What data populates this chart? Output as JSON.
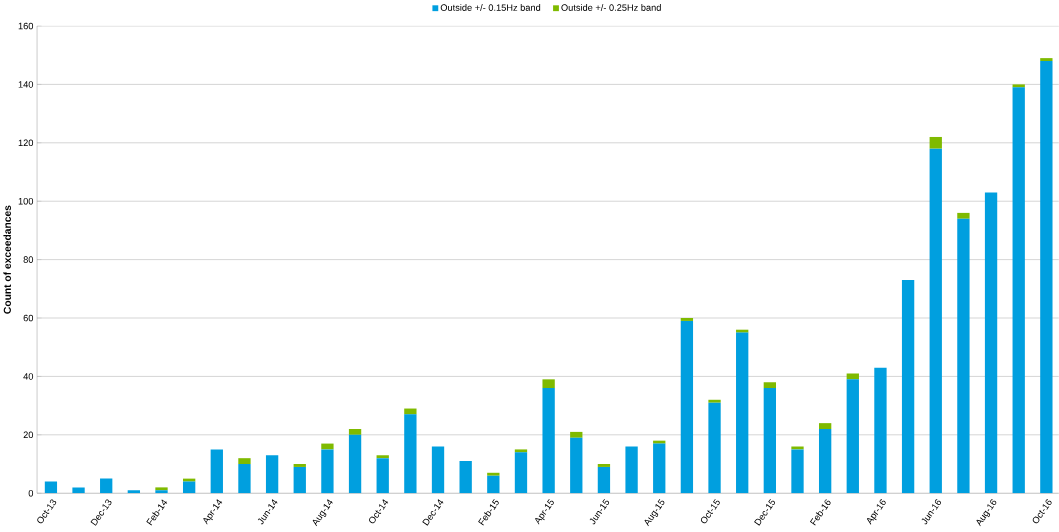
{
  "chart_data": {
    "type": "bar",
    "stacked": true,
    "ylabel": "Count of exceedances",
    "categories": [
      "Oct-13",
      null,
      "Dec-13",
      null,
      "Feb-14",
      null,
      "Apr-14",
      null,
      "Jun-14",
      null,
      "Aug-14",
      null,
      "Oct-14",
      null,
      "Dec-14",
      null,
      "Feb-15",
      null,
      "Apr-15",
      null,
      "Jun-15",
      null,
      "Aug-15",
      null,
      "Oct-15",
      null,
      "Dec-15",
      null,
      "Feb-16",
      null,
      "Apr-16",
      null,
      "Jun-16",
      null,
      "Aug-16",
      null,
      "Oct-16"
    ],
    "series": [
      {
        "name": "Outside +/- 0.15Hz band",
        "color": "#009fdf",
        "values": [
          4,
          2,
          5,
          1,
          1,
          4,
          15,
          10,
          13,
          9,
          15,
          20,
          12,
          27,
          16,
          11,
          6,
          14,
          36,
          19,
          9,
          16,
          17,
          59,
          31,
          55,
          36,
          15,
          22,
          39,
          43,
          73,
          118,
          94,
          103,
          139,
          148
        ]
      },
      {
        "name": "Outside +/- 0.25Hz band",
        "color": "#7fba00",
        "values": [
          0,
          0,
          0,
          0,
          1,
          1,
          0,
          2,
          0,
          1,
          2,
          2,
          1,
          2,
          0,
          0,
          1,
          1,
          3,
          2,
          1,
          0,
          1,
          1,
          1,
          1,
          2,
          1,
          2,
          2,
          0,
          0,
          4,
          2,
          0,
          1,
          1
        ]
      }
    ],
    "ylim": [
      0,
      160
    ],
    "yticks": [
      0,
      20,
      40,
      60,
      80,
      100,
      120,
      140,
      160
    ],
    "grid": "y",
    "legend": "top"
  }
}
